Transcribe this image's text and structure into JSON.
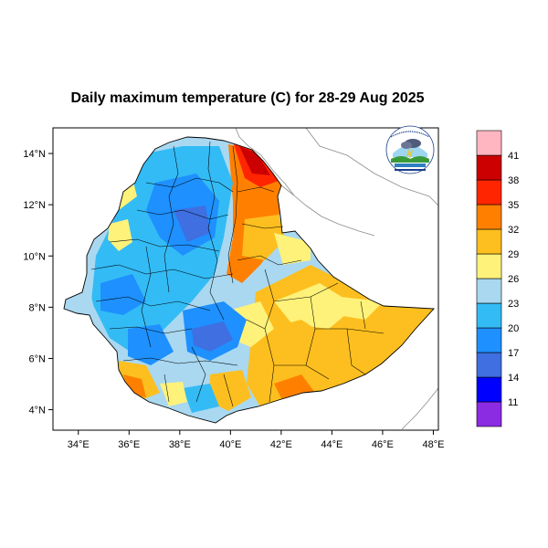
{
  "map": {
    "title": "Daily maximum temperature (C) for 28-29 Aug 2025",
    "x_ticks": [
      {
        "value": 34,
        "label": "34°E"
      },
      {
        "value": 36,
        "label": "36°E"
      },
      {
        "value": 38,
        "label": "38°E"
      },
      {
        "value": 40,
        "label": "40°E"
      },
      {
        "value": 42,
        "label": "42°E"
      },
      {
        "value": 44,
        "label": "44°E"
      },
      {
        "value": 46,
        "label": "46°E"
      },
      {
        "value": 48,
        "label": "48°E"
      }
    ],
    "y_ticks": [
      {
        "value": 14,
        "label": "14°N"
      },
      {
        "value": 12,
        "label": "12°N"
      },
      {
        "value": 10,
        "label": "10°N"
      },
      {
        "value": 8,
        "label": "8°N"
      },
      {
        "value": 6,
        "label": "6°N"
      },
      {
        "value": 4,
        "label": "4°N"
      }
    ],
    "lon_range": [
      33,
      48.2
    ],
    "lat_range": [
      3.2,
      15
    ],
    "logo_icon": "ethiopian-meteorology-institute-logo",
    "colorbar": {
      "colors": [
        "#8b2be2",
        "#0000ff",
        "#3f6fe0",
        "#1e90ff",
        "#33bbf5",
        "#a9d8f0",
        "#fff27a",
        "#fdbf1f",
        "#ff8000",
        "#ff2500",
        "#cc0000",
        "#ffb6c1"
      ],
      "labels": [
        "11",
        "14",
        "17",
        "20",
        "23",
        "26",
        "29",
        "32",
        "35",
        "38",
        "41"
      ]
    }
  }
}
